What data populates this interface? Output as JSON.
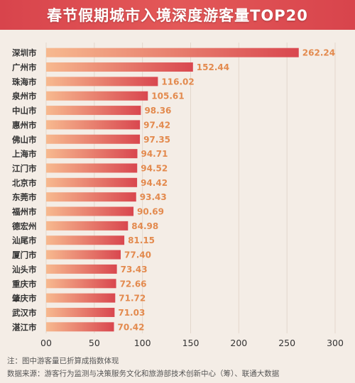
{
  "chart_data": {
    "type": "bar",
    "orientation": "horizontal",
    "title": "春节假期城市入境深度游客量TOP20",
    "categories": [
      "深圳市",
      "广州市",
      "珠海市",
      "泉州市",
      "中山市",
      "惠州市",
      "佛山市",
      "上海市",
      "江门市",
      "北京市",
      "东莞市",
      "福州市",
      "德宏州",
      "汕尾市",
      "厦门市",
      "汕头市",
      "重庆市",
      "肇庆市",
      "武汉市",
      "湛江市"
    ],
    "values": [
      262.24,
      152.44,
      116.02,
      105.61,
      98.36,
      97.42,
      97.35,
      94.71,
      94.52,
      94.42,
      93.43,
      90.69,
      84.98,
      81.15,
      77.4,
      73.43,
      72.66,
      71.72,
      71.03,
      70.42
    ],
    "value_labels": [
      "262.24",
      "152.44",
      "116.02",
      "105.61",
      "98.36",
      "97.42",
      "97.35",
      "94.71",
      "94.52",
      "94.42",
      "93.43",
      "90.69",
      "84.98",
      "81.15",
      "77.40",
      "73.43",
      "72.66",
      "71.72",
      "71.03",
      "70.42"
    ],
    "xlim": [
      0,
      300
    ],
    "x_ticks": [
      0,
      50,
      100,
      150,
      200,
      250,
      300
    ],
    "x_tick_labels": [
      "00",
      "50",
      "100",
      "150",
      "200",
      "250",
      "300"
    ],
    "grid": true,
    "xlabel": "",
    "ylabel": ""
  },
  "colors": {
    "header": "#d8444c",
    "bar_start": "#f7b98f",
    "bar_end": "#d9474f",
    "value_label": "#e38a4e",
    "category_label": "#333333",
    "grid": "#e3d7cc"
  },
  "footer": {
    "note": "注：图中游客量已折算成指数体现",
    "source": "数据来源：游客行为监测与决策服务文化和旅游部技术创新中心（筹）、联通大数据"
  }
}
